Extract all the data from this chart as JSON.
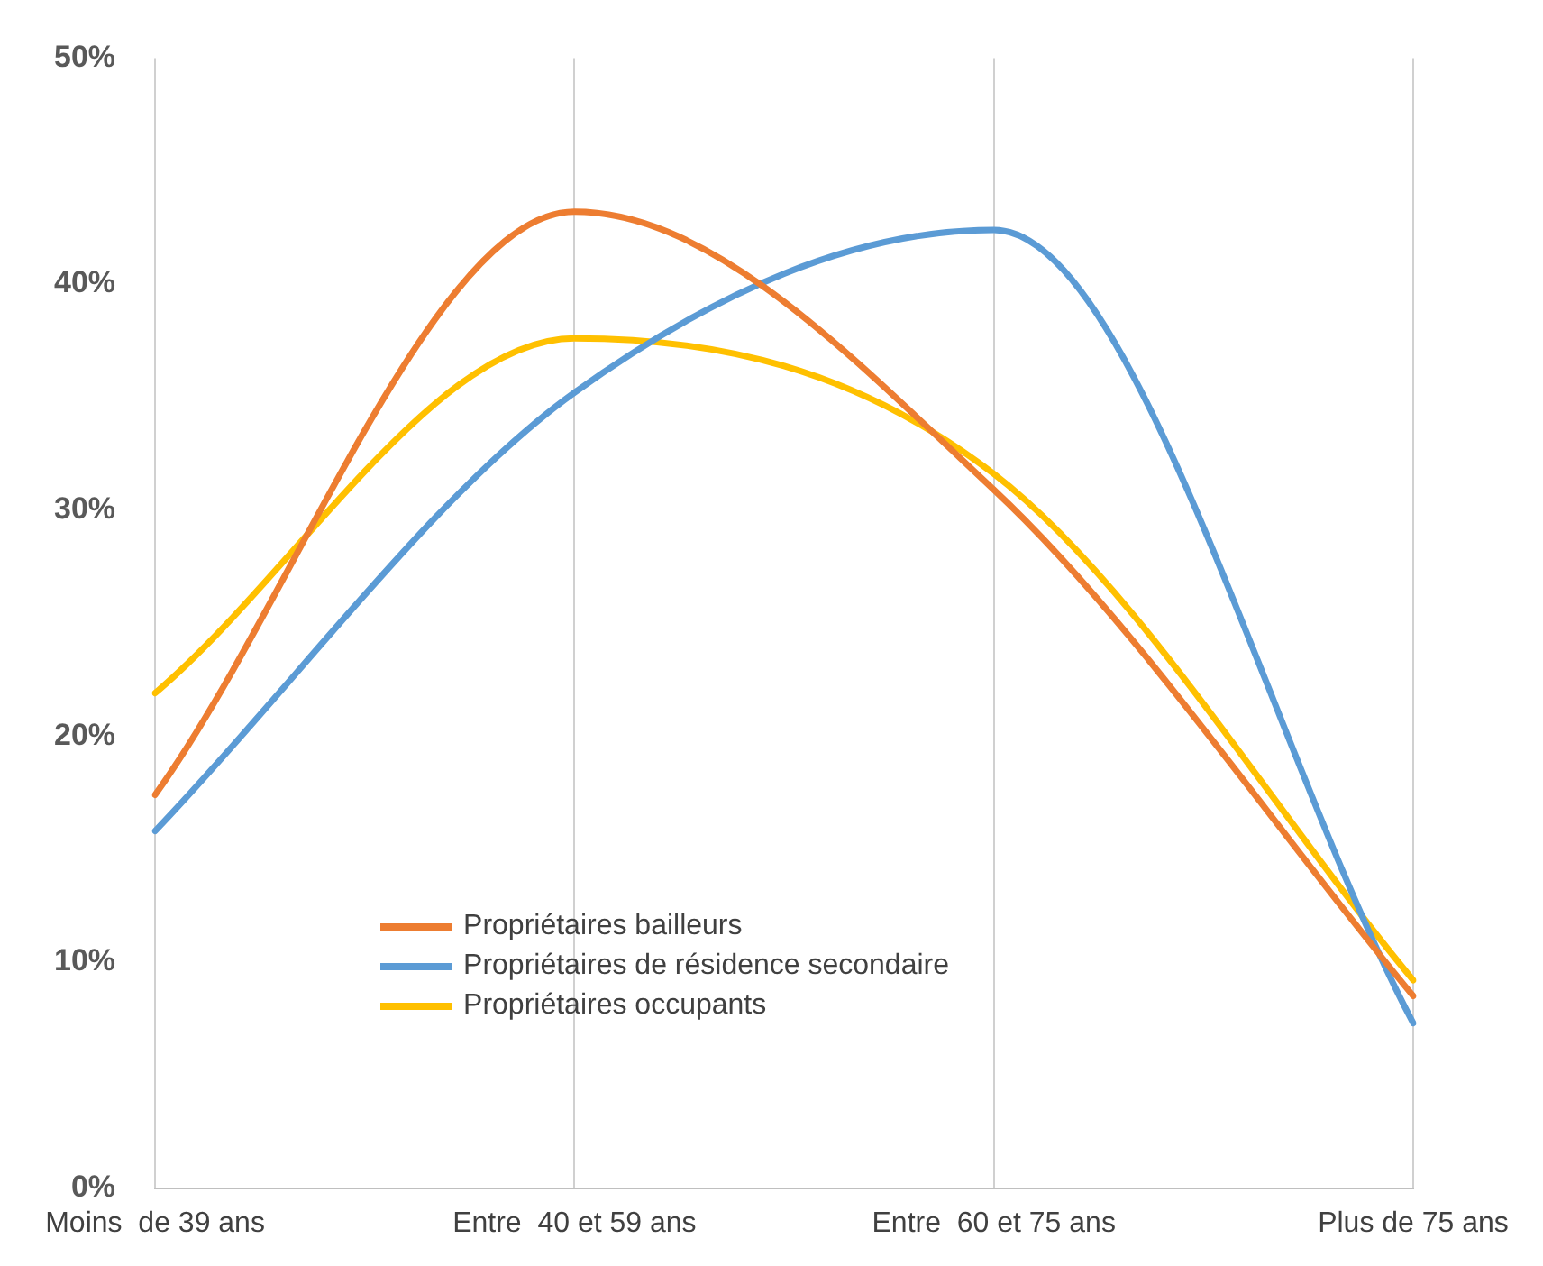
{
  "chart_data": {
    "type": "line",
    "categories": [
      "Moins  de 39 ans",
      "Entre  40 et 59 ans",
      "Entre  60 et 75 ans",
      "Plus de 75 ans"
    ],
    "series": [
      {
        "name": "Propriétaires bailleurs",
        "color": "#ed7d31",
        "values": [
          17.4,
          43.2,
          30.9,
          8.5
        ]
      },
      {
        "name": "Propriétaires de résidence secondaire",
        "color": "#5b9bd5",
        "values": [
          15.8,
          35.2,
          42.4,
          7.3
        ]
      },
      {
        "name": "Propriétaires occupants",
        "color": "#ffc000",
        "values": [
          21.9,
          37.6,
          31.6,
          9.2
        ]
      }
    ],
    "ylim": [
      0,
      50
    ],
    "yticks": [
      {
        "value": 0,
        "label": "0%"
      },
      {
        "value": 10,
        "label": "10%"
      },
      {
        "value": 20,
        "label": "20%"
      },
      {
        "value": 30,
        "label": "30%"
      },
      {
        "value": 40,
        "label": "40%"
      },
      {
        "value": 50,
        "label": "50%"
      }
    ],
    "grid": "x",
    "legend": "bottom left",
    "marker": "none",
    "line_style": "solid"
  }
}
